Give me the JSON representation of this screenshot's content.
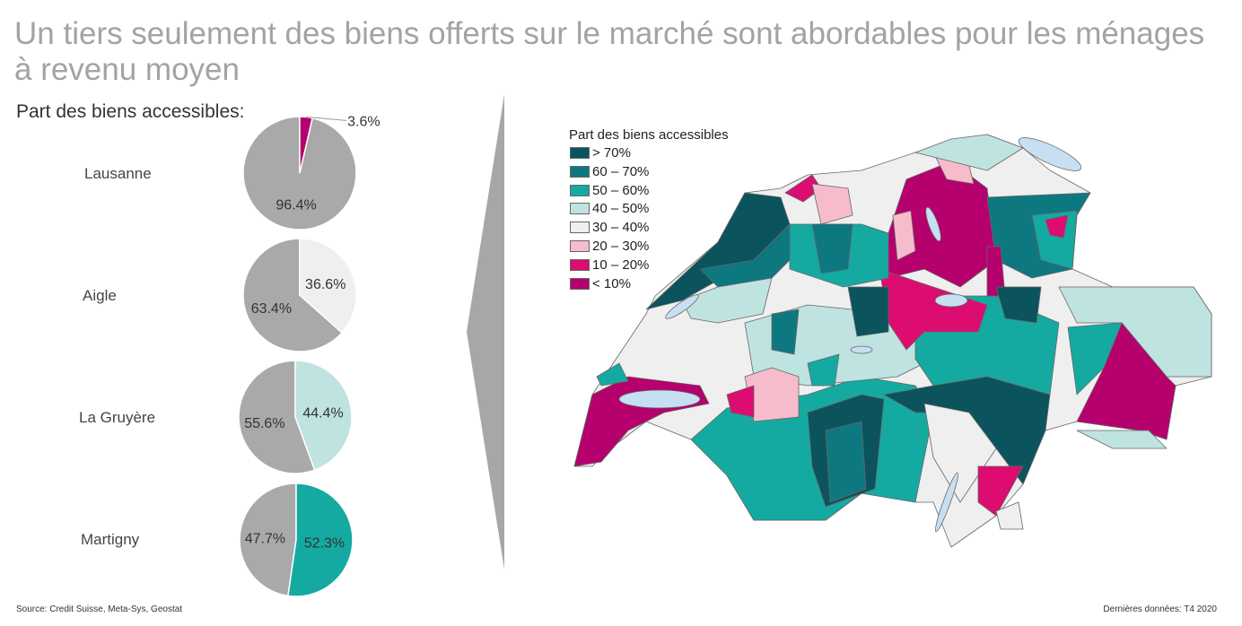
{
  "title": "Un tiers seulement des biens offerts sur le marché sont abordables pour les ménages à revenu moyen",
  "chart_data": [
    {
      "type": "pie",
      "subtitle": "Part des biens accessibles:",
      "pies": [
        {
          "label": "Lausanne",
          "accessible": 3.6,
          "other": 96.4,
          "accessible_label": "3.6%",
          "other_label": "96.4%",
          "color": "#b5006e"
        },
        {
          "label": "Aigle",
          "accessible": 36.6,
          "other": 63.4,
          "accessible_label": "36.6%",
          "other_label": "63.4%",
          "color": "#efefef"
        },
        {
          "label": "La Gruyère",
          "accessible": 44.4,
          "other": 55.6,
          "accessible_label": "44.4%",
          "other_label": "55.6%",
          "color": "#bfe3e0"
        },
        {
          "label": "Martigny",
          "accessible": 52.3,
          "other": 47.7,
          "accessible_label": "52.3%",
          "other_label": "47.7%",
          "color": "#14aaa2"
        }
      ],
      "other_color": "#a9a9a9"
    },
    {
      "type": "choropleth",
      "legend_title": "Part des biens accessibles",
      "legend": [
        {
          "label": "> 70%",
          "color": "#0b535d"
        },
        {
          "label": "60 – 70%",
          "color": "#0e7880"
        },
        {
          "label": "50 – 60%",
          "color": "#14aaa2"
        },
        {
          "label": "40 – 50%",
          "color": "#bfe3e0"
        },
        {
          "label": "30 – 40%",
          "color": "#efefef"
        },
        {
          "label": "20 – 30%",
          "color": "#f6bccb"
        },
        {
          "label": "10 – 20%",
          "color": "#dd0c70"
        },
        {
          "label": "< 10%",
          "color": "#b5006e"
        }
      ]
    }
  ],
  "footer": {
    "source": "Source: Credit Suisse, Meta-Sys, Geostat",
    "last_data": "Dernières données: T4 2020"
  }
}
